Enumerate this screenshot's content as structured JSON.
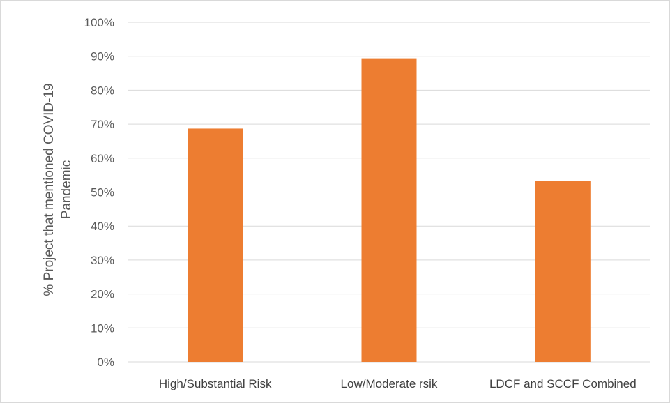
{
  "chart_data": {
    "type": "bar",
    "categories": [
      "High/Substantial Risk",
      "Low/Moderate rsik",
      "LDCF and SCCF Combined"
    ],
    "values": [
      0.687,
      0.894,
      0.532
    ],
    "title": "",
    "xlabel": "",
    "ylabel_lines": [
      "% Project  that mentioned COVID-19",
      "Pandemic"
    ],
    "ylim": [
      0,
      1
    ],
    "yticks": [
      "0%",
      "10%",
      "20%",
      "30%",
      "40%",
      "50%",
      "60%",
      "70%",
      "80%",
      "90%",
      "100%"
    ],
    "grid": true,
    "legend": "none",
    "bar_color": "#ED7D31",
    "grid_color": "#d9d9d9"
  }
}
